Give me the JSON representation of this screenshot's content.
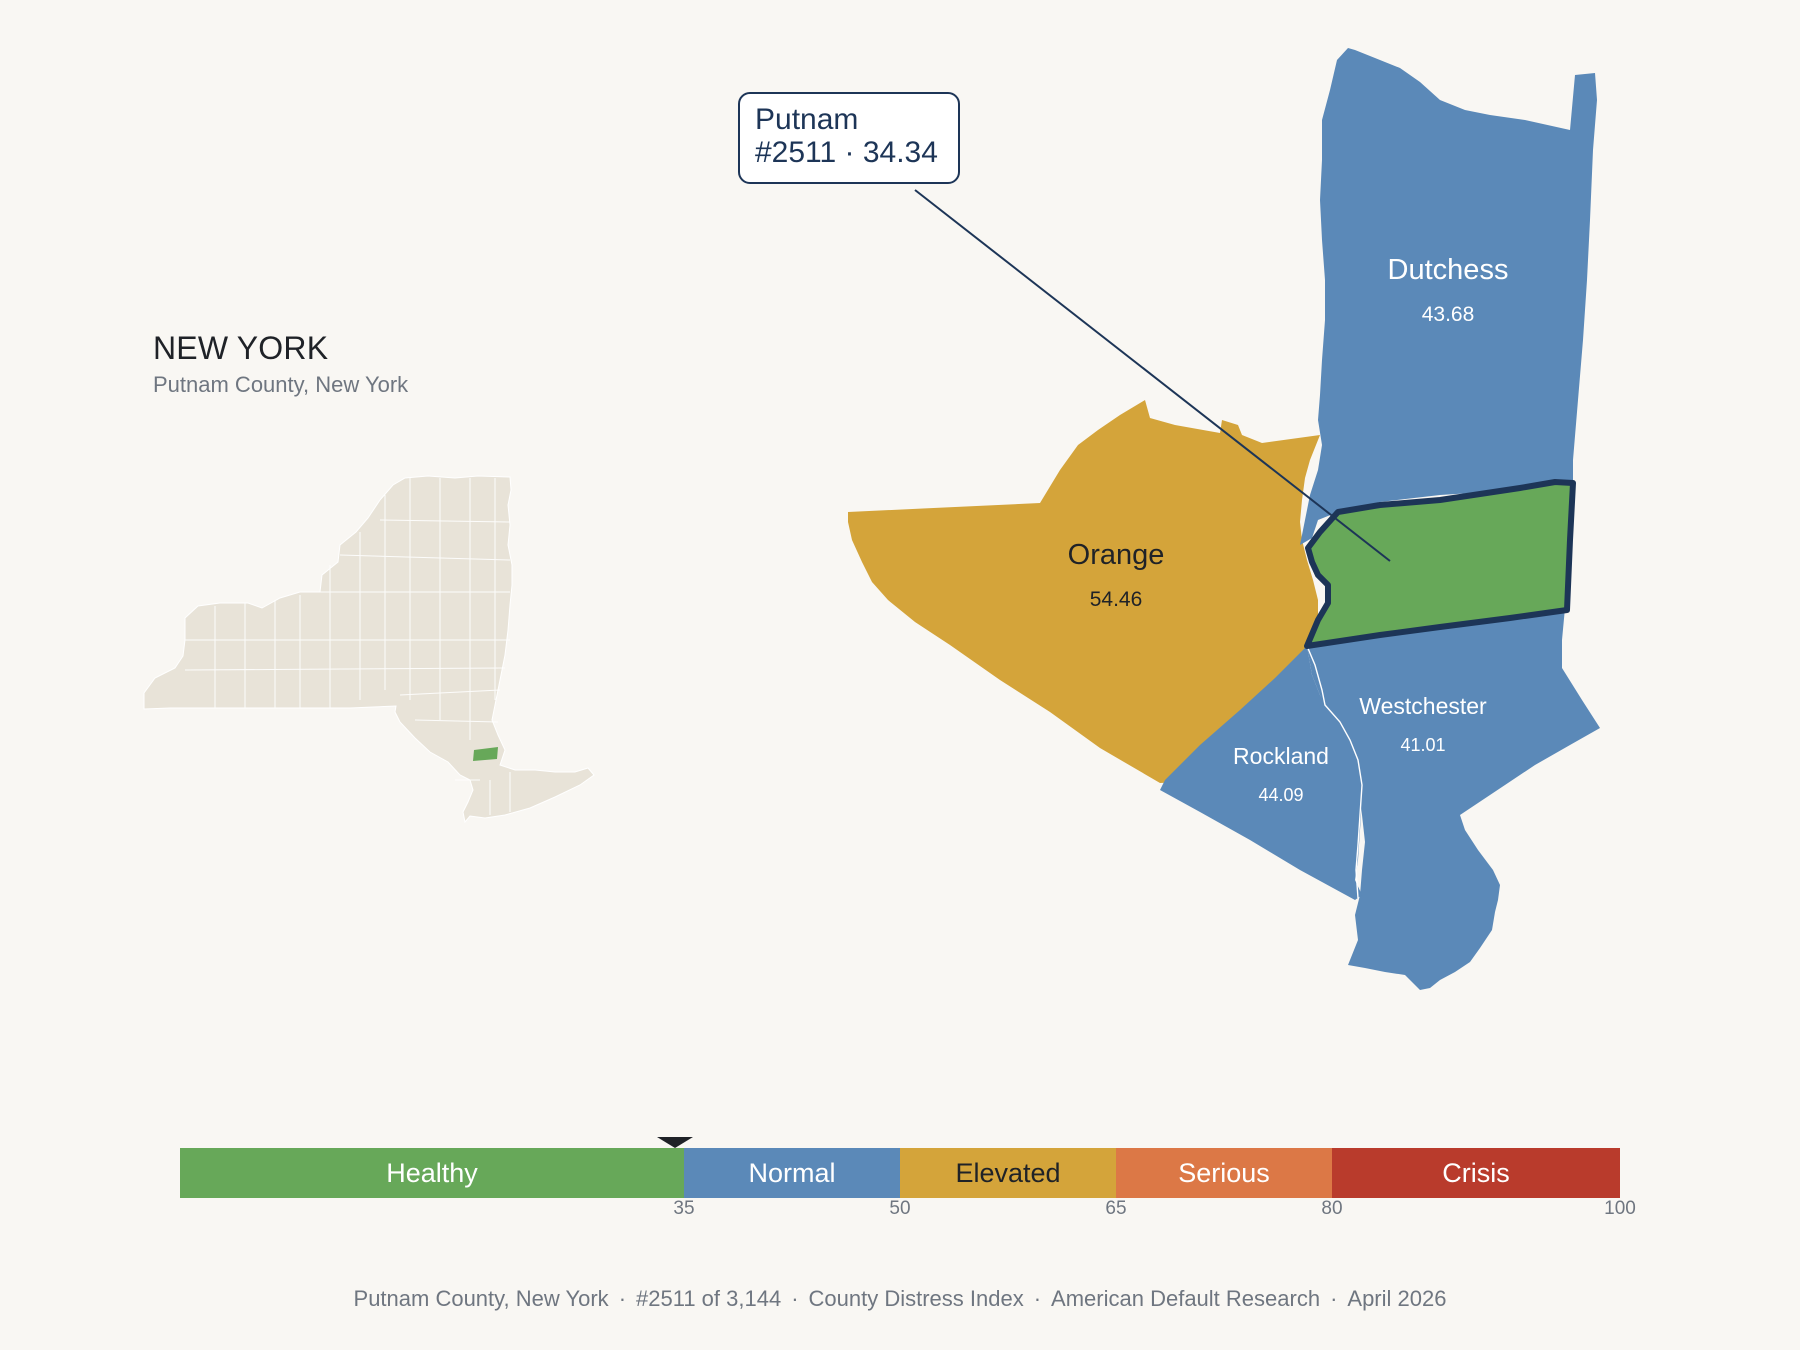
{
  "state": {
    "title": "NEW YORK",
    "subtitle": "Putnam County, New York"
  },
  "callout": {
    "county": "Putnam",
    "detail": "#2511 · 34.34"
  },
  "counties": {
    "dutchess": {
      "name": "Dutchess",
      "value": "43.68",
      "color": "#5b89b8"
    },
    "orange": {
      "name": "Orange",
      "value": "54.46",
      "color": "#d4a43a"
    },
    "putnam": {
      "name": "Putnam",
      "value": "34.34",
      "color": "#67a859",
      "outline": "#1d3557"
    },
    "westchester": {
      "name": "Westchester",
      "value": "41.01",
      "color": "#5b89b8"
    },
    "rockland": {
      "name": "Rockland",
      "value": "44.09",
      "color": "#5b89b8"
    }
  },
  "inset": {
    "state_fill": "#e8e3d8",
    "highlight_fill": "#67a859"
  },
  "scale": {
    "min": 0,
    "max": 100,
    "marker_value": 34.34,
    "segments": [
      {
        "label": "Healthy",
        "from": 0,
        "to": 35,
        "color": "#67a859"
      },
      {
        "label": "Normal",
        "from": 35,
        "to": 50,
        "color": "#5b89b8"
      },
      {
        "label": "Elevated",
        "from": 50,
        "to": 65,
        "color": "#d4a43a"
      },
      {
        "label": "Serious",
        "from": 65,
        "to": 80,
        "color": "#dc7846"
      },
      {
        "label": "Crisis",
        "from": 80,
        "to": 100,
        "color": "#b93b2c"
      }
    ],
    "ticks": [
      "35",
      "50",
      "65",
      "80",
      "100"
    ]
  },
  "footer": {
    "county": "Putnam County, New York",
    "rank": "#2511 of 3,144",
    "index": "County Distress Index",
    "source": "American Default Research",
    "date": "April 2026"
  }
}
